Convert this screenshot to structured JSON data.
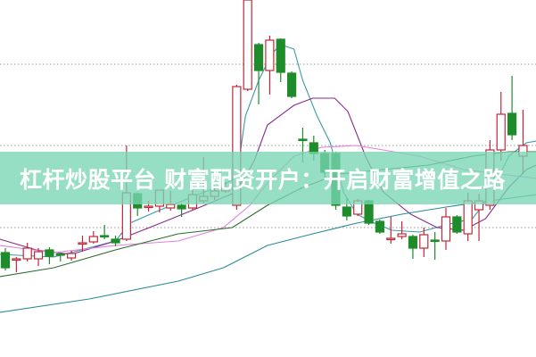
{
  "banner": {
    "title": "杠杆炒股平台 财富配资开户：开启财富增值之路"
  },
  "chart_data": {
    "type": "candlestick",
    "title": "",
    "xlabel": "",
    "ylabel": "",
    "ylim": [
      0,
      400
    ],
    "grid": "horizontal dotted",
    "colors": {
      "up": "#c0283a",
      "down": "#1e8c2a",
      "ma5": "#3a9aa8",
      "ma10": "#8a2a8a",
      "ma20": "#e080e0",
      "ma30": "#2e6b2e",
      "ma60": "#2a8a9a"
    },
    "candles": [
      [
        117,
        100,
        122,
        97
      ],
      [
        109,
        110,
        112,
        95
      ],
      [
        110,
        122,
        128,
        107
      ],
      [
        110,
        118,
        122,
        102
      ],
      [
        120,
        113,
        123,
        104
      ],
      [
        115.5,
        115,
        117,
        107
      ],
      [
        111,
        116,
        119,
        108
      ],
      [
        127,
        128,
        136,
        118
      ],
      [
        129,
        135,
        141,
        127
      ],
      [
        136,
        135,
        148,
        132
      ],
      [
        132,
        128,
        136,
        124
      ],
      [
        132,
        184,
        237,
        130
      ],
      [
        183,
        167,
        185,
        158
      ],
      [
        168,
        169,
        175,
        163
      ],
      [
        169,
        187,
        187,
        162
      ],
      [
        167,
        171,
        186,
        164
      ],
      [
        170,
        166,
        172,
        157
      ],
      [
        167,
        182,
        188,
        164
      ],
      [
        175,
        180,
        224,
        172
      ],
      [
        180,
        186,
        192,
        176
      ],
      [
        186,
        190,
        196,
        184
      ],
      [
        170,
        303,
        305,
        165
      ],
      [
        300,
        400,
        400,
        298
      ],
      [
        350,
        321,
        352,
        283
      ],
      [
        321,
        355,
        360,
        294
      ],
      [
        356,
        319,
        357,
        308
      ],
      [
        318,
        292,
        320,
        290
      ],
      [
        244,
        243,
        257,
        218
      ],
      [
        240,
        228,
        248,
        220
      ],
      [
        228,
        207,
        232,
        200
      ],
      [
        228,
        170,
        230,
        165
      ],
      [
        168,
        158,
        178,
        153
      ],
      [
        160,
        175,
        177,
        158
      ],
      [
        175,
        150,
        176,
        148
      ],
      [
        152,
        140,
        154,
        138
      ],
      [
        132,
        133,
        157,
        127
      ],
      [
        135,
        138,
        152,
        132
      ],
      [
        135,
        122,
        137,
        110
      ],
      [
        122,
        137,
        145,
        112
      ],
      [
        131,
        130,
        140,
        109
      ],
      [
        130,
        157,
        167,
        120
      ],
      [
        157,
        140,
        159,
        138
      ],
      [
        138,
        175,
        184,
        130
      ],
      [
        165,
        175,
        183,
        130
      ],
      [
        170,
        232,
        243,
        165
      ],
      [
        232,
        272,
        297,
        220
      ],
      [
        273,
        249,
        315,
        243
      ],
      [
        225,
        237,
        277,
        205
      ]
    ],
    "candle_fields": [
      "open",
      "close",
      "high",
      "low"
    ],
    "moving_averages": [
      {
        "key": "ma5",
        "points": [
          [
            -0.5,
            115
          ],
          [
            4.4,
            112
          ],
          [
            10,
            130
          ],
          [
            11.3,
            150
          ],
          [
            14.1,
            165
          ],
          [
            18.1,
            185
          ],
          [
            21,
            200
          ],
          [
            21.8,
            270
          ],
          [
            23,
            310
          ],
          [
            24.2,
            340
          ],
          [
            25,
            350
          ],
          [
            26.2,
            345
          ],
          [
            27,
            310
          ],
          [
            28.3,
            270
          ],
          [
            29.5,
            240
          ],
          [
            30.7,
            185
          ],
          [
            31.9,
            160
          ],
          [
            33.5,
            150
          ],
          [
            35.1,
            142
          ],
          [
            37.6,
            140
          ],
          [
            40,
            148
          ],
          [
            42.4,
            155
          ],
          [
            44,
            180
          ],
          [
            45.7,
            225
          ],
          [
            47.3,
            240
          ],
          [
            48.2,
            242
          ]
        ]
      },
      {
        "key": "ma10",
        "points": [
          [
            -0.5,
            132
          ],
          [
            2.8,
            120
          ],
          [
            6,
            115
          ],
          [
            10,
            130
          ],
          [
            14.1,
            150
          ],
          [
            18.1,
            170
          ],
          [
            21,
            185
          ],
          [
            22.6,
            220
          ],
          [
            23.8,
            260
          ],
          [
            26.2,
            282
          ],
          [
            27.9,
            290
          ],
          [
            29.9,
            290
          ],
          [
            31.1,
            275
          ],
          [
            32.7,
            225
          ],
          [
            34.3,
            185
          ],
          [
            36.8,
            160
          ],
          [
            39.2,
            145
          ],
          [
            41.6,
            142
          ],
          [
            43.6,
            155
          ],
          [
            45.7,
            190
          ],
          [
            47.3,
            210
          ],
          [
            48.2,
            215
          ]
        ]
      },
      {
        "key": "ma20",
        "points": [
          [
            -0.5,
            125
          ],
          [
            4.4,
            117
          ],
          [
            10,
            125
          ],
          [
            15.7,
            130
          ],
          [
            19.8,
            145
          ],
          [
            22.2,
            170
          ],
          [
            23.8,
            195
          ],
          [
            26.2,
            225
          ],
          [
            28.7,
            235
          ],
          [
            31.9,
            237
          ],
          [
            34.3,
            232
          ],
          [
            37.6,
            225
          ],
          [
            41.6,
            210
          ],
          [
            44.9,
            205
          ],
          [
            48.2,
            200
          ]
        ]
      },
      {
        "key": "ma30",
        "points": [
          [
            -0.5,
            90
          ],
          [
            4.4,
            100
          ],
          [
            10,
            120
          ],
          [
            15.7,
            138
          ],
          [
            20.6,
            145
          ],
          [
            23.8,
            170
          ],
          [
            27,
            190
          ],
          [
            30.3,
            205
          ],
          [
            34.3,
            210
          ],
          [
            38.4,
            215
          ],
          [
            42.4,
            225
          ],
          [
            45.7,
            230
          ],
          [
            48.2,
            230
          ]
        ]
      },
      {
        "key": "ma60",
        "points": [
          [
            -0.5,
            50
          ],
          [
            7.6,
            65
          ],
          [
            15.7,
            85
          ],
          [
            19.8,
            100
          ],
          [
            23.8,
            125
          ],
          [
            27.9,
            138
          ],
          [
            31.9,
            150
          ],
          [
            36,
            160
          ],
          [
            40,
            168
          ],
          [
            44,
            175
          ],
          [
            48.2,
            182
          ]
        ]
      }
    ],
    "gridlines": [
      328,
      237,
      145
    ]
  }
}
